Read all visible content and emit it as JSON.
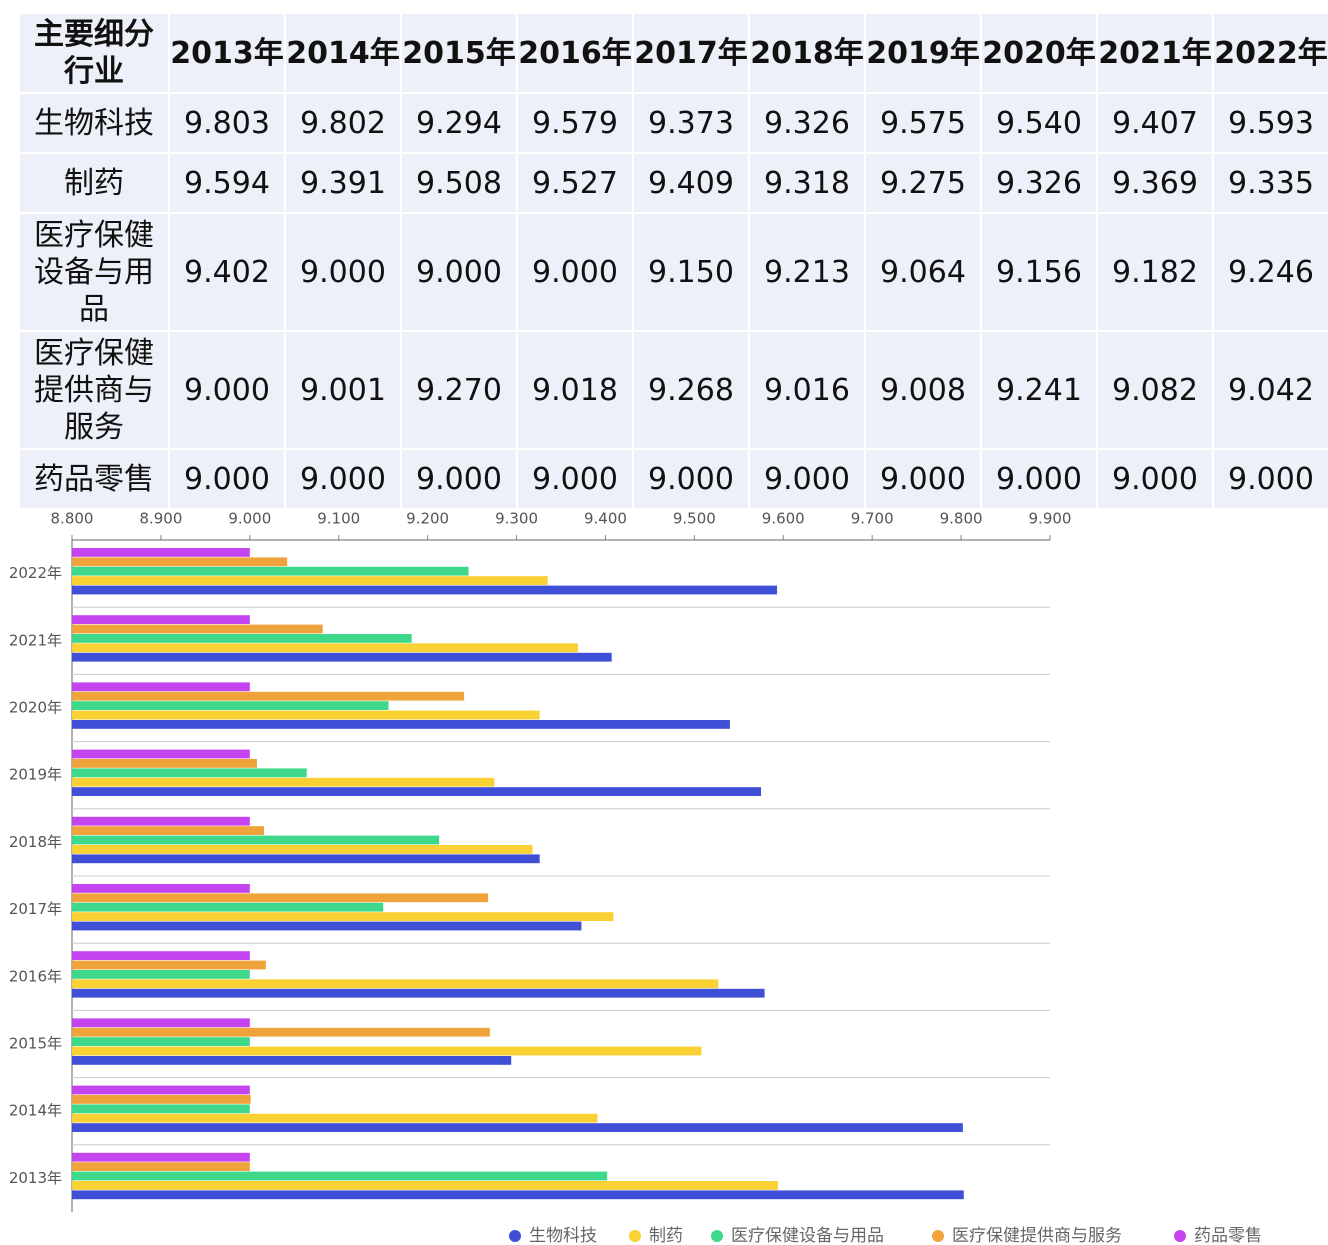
{
  "table": {
    "header": [
      "主要细分行业",
      "2013年",
      "2014年",
      "2015年",
      "2016年",
      "2017年",
      "2018年",
      "2019年",
      "2020年",
      "2021年",
      "2022年"
    ],
    "rows": [
      [
        "生物科技",
        "9.803",
        "9.802",
        "9.294",
        "9.579",
        "9.373",
        "9.326",
        "9.575",
        "9.540",
        "9.407",
        "9.593"
      ],
      [
        "制药",
        "9.594",
        "9.391",
        "9.508",
        "9.527",
        "9.409",
        "9.318",
        "9.275",
        "9.326",
        "9.369",
        "9.335"
      ],
      [
        "医疗保健设备与用品",
        "9.402",
        "9.000",
        "9.000",
        "9.000",
        "9.150",
        "9.213",
        "9.064",
        "9.156",
        "9.182",
        "9.246"
      ],
      [
        "医疗保健提供商与服务",
        "9.000",
        "9.001",
        "9.270",
        "9.018",
        "9.268",
        "9.016",
        "9.008",
        "9.241",
        "9.082",
        "9.042"
      ],
      [
        "药品零售",
        "9.000",
        "9.000",
        "9.000",
        "9.000",
        "9.000",
        "9.000",
        "9.000",
        "9.000",
        "9.000",
        "9.000"
      ]
    ]
  },
  "chart_data": {
    "type": "hbar",
    "categories": [
      "2013年",
      "2014年",
      "2015年",
      "2016年",
      "2017年",
      "2018年",
      "2019年",
      "2020年",
      "2021年",
      "2022年"
    ],
    "series": [
      {
        "name": "生物科技",
        "color": "#3f4fd6",
        "values": [
          9.803,
          9.802,
          9.294,
          9.579,
          9.373,
          9.326,
          9.575,
          9.54,
          9.407,
          9.593
        ]
      },
      {
        "name": "制药",
        "color": "#f9d132",
        "values": [
          9.594,
          9.391,
          9.508,
          9.527,
          9.409,
          9.318,
          9.275,
          9.326,
          9.369,
          9.335
        ]
      },
      {
        "name": "医疗保健设备与用品",
        "color": "#3ed88a",
        "values": [
          9.402,
          9.0,
          9.0,
          9.0,
          9.15,
          9.213,
          9.064,
          9.156,
          9.182,
          9.246
        ]
      },
      {
        "name": "医疗保健提供商与服务",
        "color": "#f0a33a",
        "values": [
          9.0,
          9.001,
          9.27,
          9.018,
          9.268,
          9.016,
          9.008,
          9.241,
          9.082,
          9.042
        ]
      },
      {
        "name": "药品零售",
        "color": "#c444f0",
        "values": [
          9.0,
          9.0,
          9.0,
          9.0,
          9.0,
          9.0,
          9.0,
          9.0,
          9.0,
          9.0
        ]
      }
    ],
    "xlim": [
      8.8,
      9.9
    ],
    "xticks": [
      {
        "value": 8.8,
        "label": "8.800"
      },
      {
        "value": 8.9,
        "label": "8.900"
      },
      {
        "value": 9.0,
        "label": "9.000"
      },
      {
        "value": 9.1,
        "label": "9.100"
      },
      {
        "value": 9.2,
        "label": "9.200"
      },
      {
        "value": 9.3,
        "label": "9.300"
      },
      {
        "value": 9.4,
        "label": "9.400"
      },
      {
        "value": 9.5,
        "label": "9.500"
      },
      {
        "value": 9.6,
        "label": "9.600"
      },
      {
        "value": 9.7,
        "label": "9.700"
      },
      {
        "value": 9.8,
        "label": "9.800"
      },
      {
        "value": 9.9,
        "label": "9.900"
      }
    ],
    "grid": true,
    "legend": "bottom"
  }
}
